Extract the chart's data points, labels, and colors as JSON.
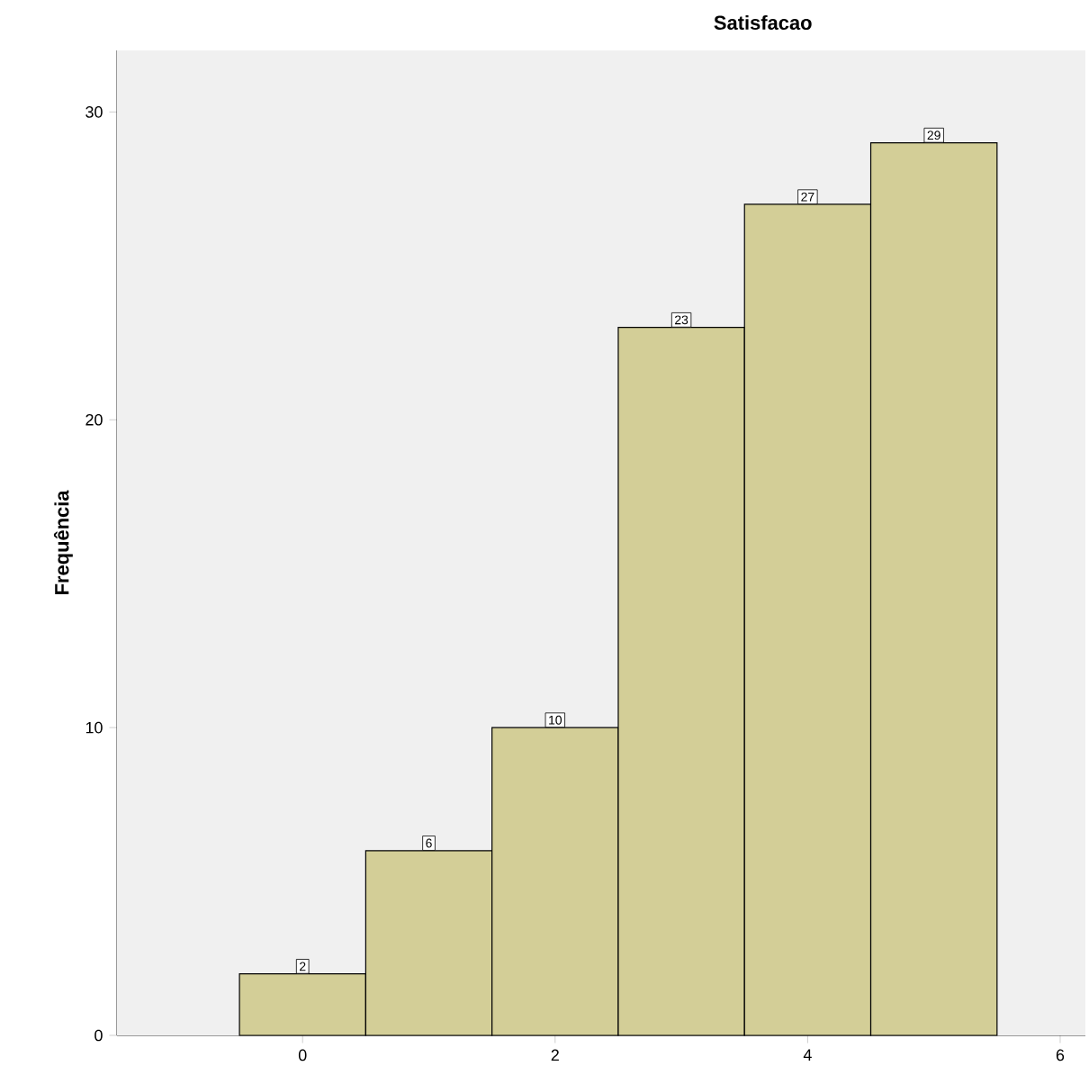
{
  "chart_data": {
    "type": "histogram",
    "title": "Satisfacao",
    "ylabel": "Frequência",
    "bins": [
      -0.5,
      0.5,
      1.5,
      2.5,
      3.5,
      4.5,
      5.5
    ],
    "values": [
      2,
      6,
      10,
      23,
      27,
      29
    ],
    "color": "#d3ce97",
    "xlim": [
      -1.47,
      6.2
    ],
    "ylim": [
      0,
      32
    ],
    "xticks": [
      0,
      2,
      4,
      6
    ],
    "yticks": [
      0,
      10,
      20,
      30
    ],
    "data_labels": true,
    "grid": false
  }
}
